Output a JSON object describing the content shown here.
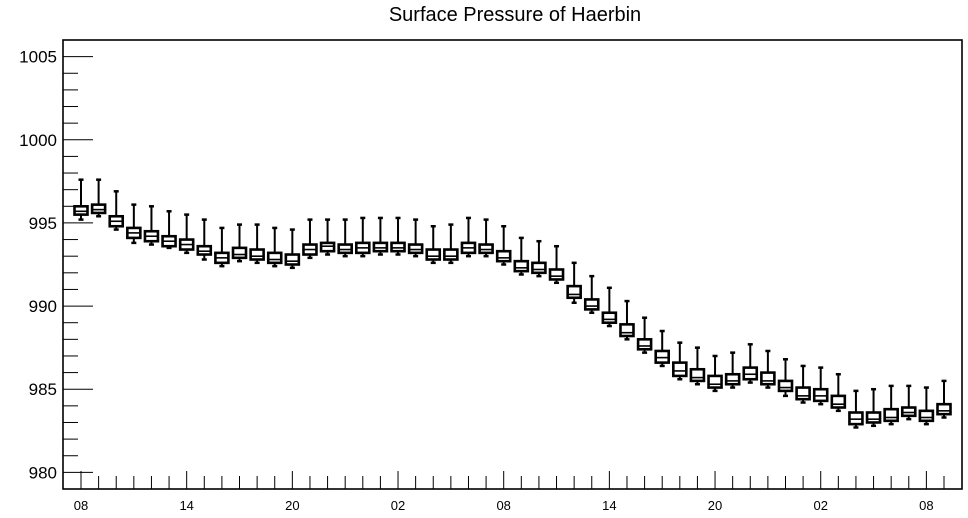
{
  "chart_data": {
    "type": "box",
    "title": "Surface Pressure of Haerbin",
    "xlabel": "",
    "ylabel": "",
    "ylim": [
      979,
      1006
    ],
    "y_ticks": [
      "980",
      "985",
      "990",
      "995",
      "1000",
      "1005"
    ],
    "x_tick_labels": [
      "08",
      "14",
      "20",
      "02",
      "08",
      "14",
      "20",
      "02",
      "08"
    ],
    "x_tick_every": 6,
    "grid": false,
    "series": [
      {
        "min": [
          995.2,
          995.4,
          994.6,
          993.8,
          993.7,
          993.5,
          993.2,
          992.8,
          992.4,
          992.7,
          992.6,
          992.4,
          992.3,
          992.9,
          993.1,
          993.0,
          993.0,
          993.1,
          993.1,
          993.0,
          992.6,
          992.6,
          993.0,
          993.0,
          992.5,
          991.9,
          991.8,
          991.4,
          990.2,
          989.6,
          988.8,
          988.0,
          987.2,
          986.4,
          985.6,
          985.3,
          984.9,
          985.1,
          985.4,
          985.1,
          984.6,
          984.2,
          984.1,
          983.7,
          982.7,
          982.8,
          982.9,
          983.2,
          982.9,
          983.3
        ],
        "q1": [
          995.5,
          995.6,
          994.8,
          994.1,
          993.9,
          993.6,
          993.4,
          993.1,
          992.6,
          992.9,
          992.8,
          992.6,
          992.5,
          993.1,
          993.3,
          993.2,
          993.2,
          993.3,
          993.3,
          993.2,
          992.8,
          992.8,
          993.2,
          993.2,
          992.7,
          992.1,
          992.0,
          991.6,
          990.5,
          989.8,
          989.0,
          988.2,
          987.4,
          986.6,
          985.8,
          985.5,
          985.1,
          985.3,
          985.6,
          985.3,
          984.9,
          984.4,
          984.3,
          983.9,
          982.9,
          983.0,
          983.1,
          983.4,
          983.1,
          983.5
        ],
        "median": [
          995.7,
          995.8,
          995.1,
          994.4,
          994.2,
          993.9,
          993.7,
          993.3,
          992.9,
          993.1,
          993.0,
          992.8,
          992.7,
          993.4,
          993.6,
          993.4,
          993.5,
          993.5,
          993.5,
          993.4,
          993.0,
          993.0,
          993.5,
          993.4,
          992.9,
          992.3,
          992.2,
          991.8,
          990.7,
          990.0,
          989.2,
          988.4,
          987.6,
          986.9,
          986.1,
          985.7,
          985.3,
          985.5,
          985.9,
          985.5,
          985.1,
          984.6,
          984.6,
          984.1,
          983.2,
          983.2,
          983.3,
          983.6,
          983.3,
          983.7
        ],
        "q3": [
          996.0,
          996.1,
          995.4,
          994.7,
          994.5,
          994.2,
          994.0,
          993.6,
          993.2,
          993.5,
          993.4,
          993.2,
          993.1,
          993.7,
          993.8,
          993.7,
          993.8,
          993.8,
          993.8,
          993.7,
          993.4,
          993.4,
          993.8,
          993.7,
          993.3,
          992.7,
          992.6,
          992.2,
          991.2,
          990.4,
          989.6,
          988.9,
          988.0,
          987.3,
          986.6,
          986.2,
          985.8,
          985.9,
          986.3,
          986.0,
          985.5,
          985.1,
          985.0,
          984.6,
          983.6,
          983.6,
          983.8,
          983.9,
          983.7,
          984.1
        ],
        "max": [
          997.6,
          997.6,
          996.9,
          996.1,
          996.0,
          995.7,
          995.5,
          995.2,
          994.7,
          994.9,
          994.9,
          994.7,
          994.6,
          995.2,
          995.2,
          995.2,
          995.3,
          995.3,
          995.3,
          995.2,
          994.8,
          994.9,
          995.3,
          995.2,
          994.8,
          994.1,
          993.9,
          993.6,
          992.6,
          991.8,
          991.1,
          990.3,
          989.3,
          988.5,
          987.8,
          987.5,
          987.0,
          987.2,
          987.7,
          987.3,
          986.8,
          986.4,
          986.3,
          985.9,
          984.9,
          985.0,
          985.2,
          985.2,
          985.1,
          985.5
        ]
      }
    ]
  }
}
